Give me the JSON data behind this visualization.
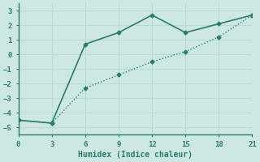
{
  "line1_x": [
    0,
    3,
    6,
    9,
    12,
    15,
    18,
    21
  ],
  "line1_y": [
    -4.5,
    -4.7,
    0.7,
    1.5,
    2.7,
    1.5,
    2.1,
    2.7
  ],
  "line2_x": [
    0,
    3,
    6,
    9,
    12,
    15,
    18,
    21
  ],
  "line2_y": [
    -4.5,
    -4.7,
    -2.3,
    -1.4,
    -0.5,
    0.2,
    1.2,
    2.7
  ],
  "color": "#2a7d6e",
  "xlabel": "Humidex (Indice chaleur)",
  "xlim": [
    0,
    21
  ],
  "ylim": [
    -5.5,
    3.5
  ],
  "xticks": [
    0,
    3,
    6,
    9,
    12,
    15,
    18,
    21
  ],
  "yticks": [
    -5,
    -4,
    -3,
    -2,
    -1,
    0,
    1,
    2,
    3
  ],
  "bg_color": "#cde8e2",
  "grid_color": "#b8d8d2",
  "axis_color": "#2a7d6e"
}
